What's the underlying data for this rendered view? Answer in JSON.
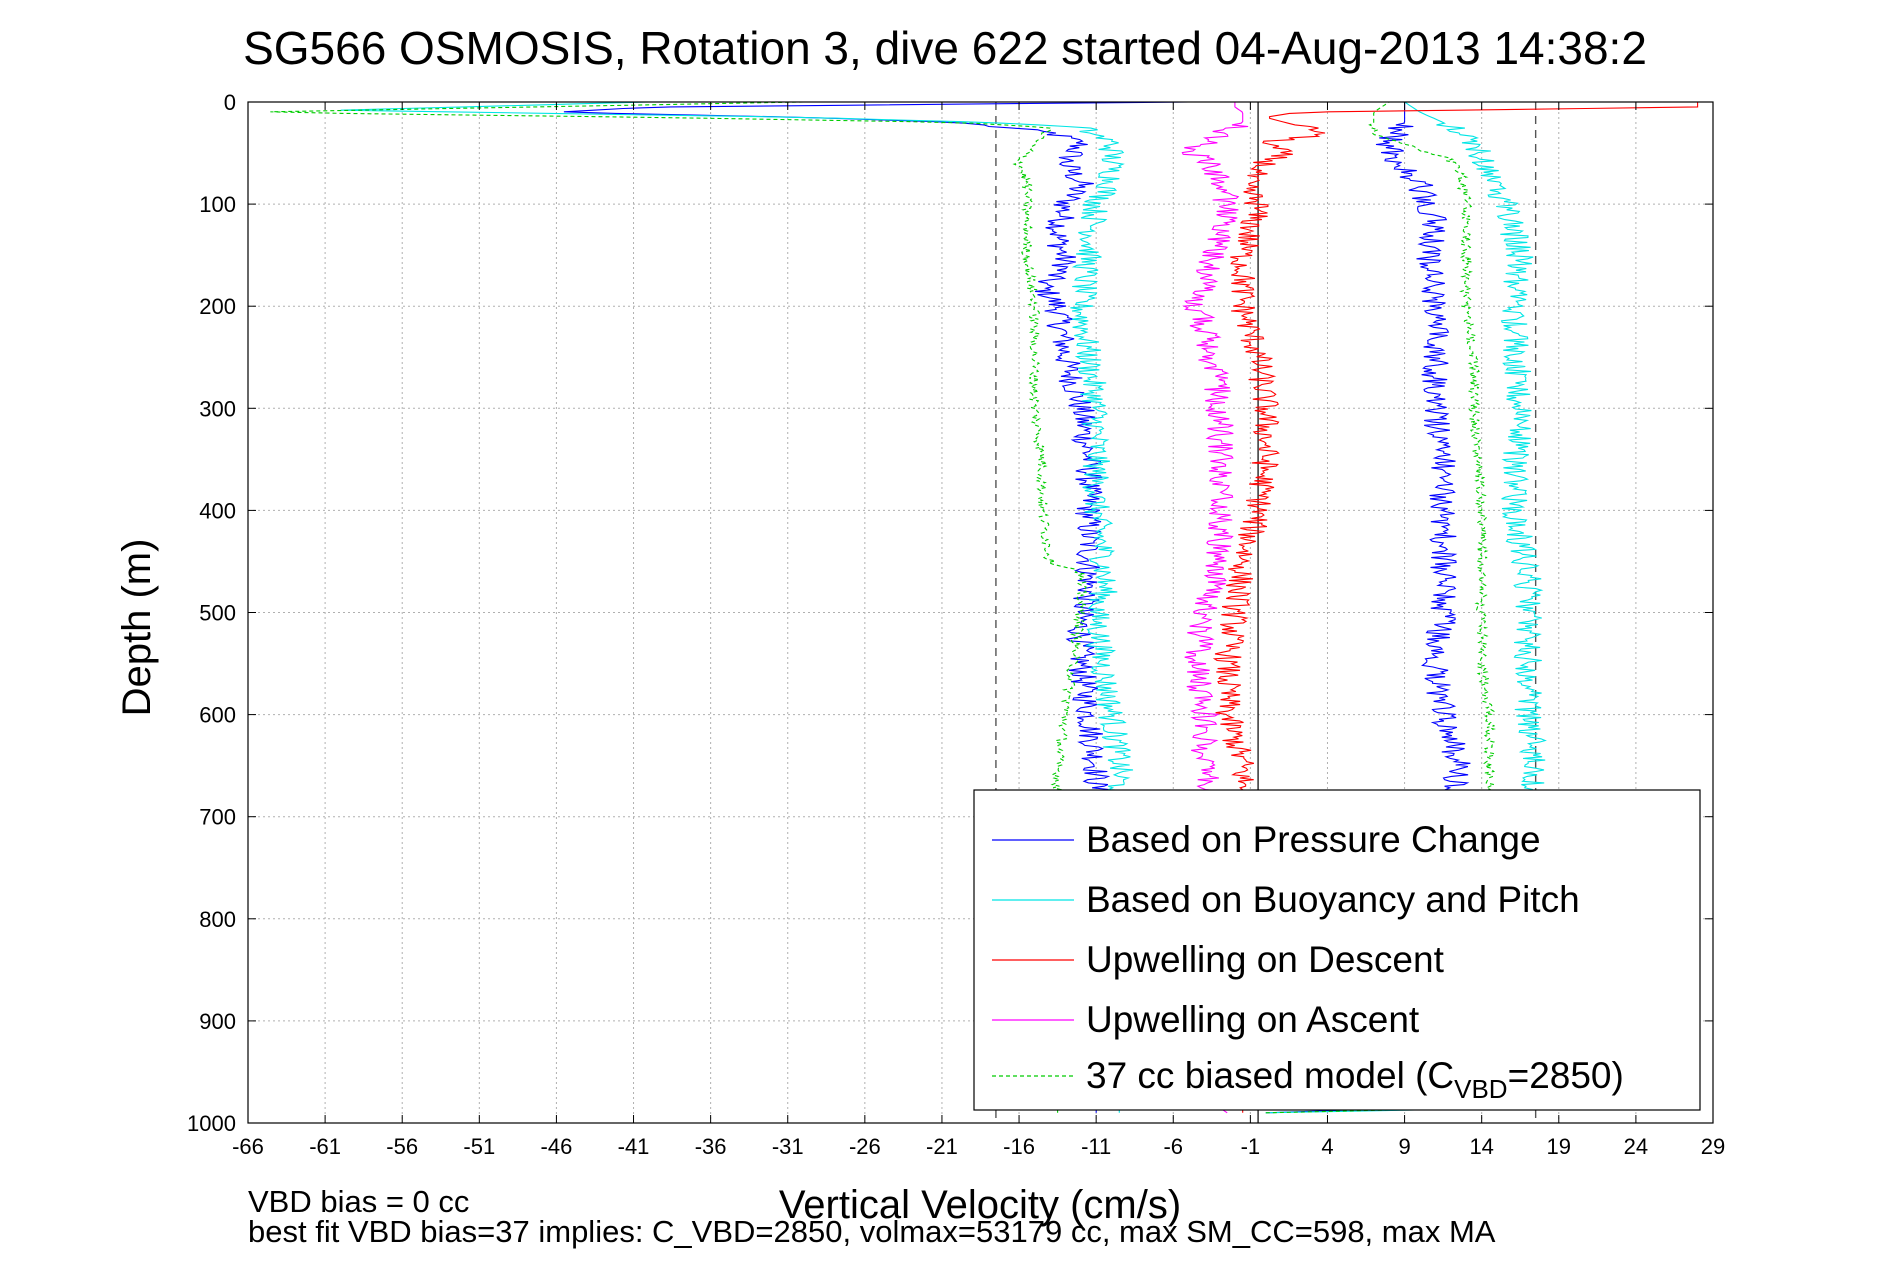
{
  "chart_data": {
    "type": "line",
    "title": "SG566 OSMOSIS, Rotation 3, dive 622 started 04-Aug-2013 14:38:2",
    "xlabel": "Vertical Velocity (cm/s)",
    "ylabel": "Depth (m)",
    "xlim": [
      -66,
      29
    ],
    "ylim": [
      1000,
      0
    ],
    "y_reversed": true,
    "grid": true,
    "x_ticks": [
      "-66",
      "-61",
      "-56",
      "-51",
      "-46",
      "-41",
      "-36",
      "-31",
      "-26",
      "-21",
      "-16",
      "-11",
      "-6",
      "-1",
      "4",
      "9",
      "14",
      "19",
      "24",
      "29"
    ],
    "y_ticks": [
      "0",
      "100",
      "200",
      "300",
      "400",
      "500",
      "600",
      "700",
      "800",
      "900",
      "1000"
    ],
    "legend_placement": "bottom-right",
    "reference_lines": {
      "solid_x": -0.5,
      "dashed_x": [
        -17.5,
        17.5
      ]
    },
    "legend": {
      "pressure": "Based on Pressure Change",
      "buoyancy": "Based on Buoyancy and Pitch",
      "up_descent": "Upwelling on Descent",
      "up_ascent": "Upwelling on Ascent",
      "model_prefix": "37 cc biased model (C",
      "model_sub": "VBD",
      "model_suffix": "=2850)"
    },
    "series": [
      {
        "key": "pressure",
        "name": "Based on Pressure Change",
        "color": "#0000ff",
        "descent_depths": [
          0,
          5,
          10,
          15,
          20,
          30,
          40,
          60,
          80,
          100,
          130,
          160,
          180,
          200,
          250,
          300,
          350,
          400,
          450,
          480,
          500,
          550,
          600,
          650,
          700,
          800,
          900,
          985,
          990
        ],
        "descent_vel": [
          -5,
          -40,
          -46,
          -30,
          -20,
          -14,
          -12,
          -13,
          -12,
          -13,
          -13.5,
          -13,
          -14.5,
          -13.5,
          -13,
          -12,
          -11.5,
          -11.5,
          -11.5,
          -11.5,
          -12,
          -12,
          -11.5,
          -11,
          -11,
          -11,
          -11,
          -11,
          -11
        ],
        "ascent_depths": [
          990,
          985,
          900,
          800,
          700,
          650,
          600,
          550,
          500,
          450,
          400,
          350,
          300,
          250,
          200,
          150,
          120,
          100,
          80,
          60,
          40,
          20,
          10,
          5,
          0
        ],
        "ascent_vel": [
          0,
          10,
          11,
          12,
          12,
          12.5,
          11.5,
          11,
          11.5,
          11.5,
          11.5,
          11.5,
          11,
          11,
          11,
          10.5,
          11,
          10.5,
          10,
          8.5,
          8,
          9,
          9,
          9,
          9
        ]
      },
      {
        "key": "buoyancy",
        "name": "Based on Buoyancy and Pitch",
        "color": "#00e5e5",
        "descent_depths": [
          0,
          8,
          15,
          20,
          25,
          40,
          60,
          80,
          100,
          150,
          200,
          250,
          300,
          400,
          450,
          480,
          500,
          560,
          600,
          650,
          700,
          800,
          900,
          990
        ],
        "descent_vel": [
          -40,
          -60,
          -30,
          -18,
          -12,
          -10,
          -10,
          -10,
          -11,
          -11.5,
          -12,
          -11.5,
          -11,
          -11,
          -10.5,
          -10.5,
          -11,
          -10.5,
          -10,
          -9.5,
          -9.5,
          -9.5,
          -9.5,
          -9.5
        ],
        "ascent_depths": [
          990,
          985,
          900,
          800,
          700,
          650,
          600,
          550,
          460,
          400,
          300,
          200,
          150,
          100,
          60,
          40,
          20,
          10,
          0
        ],
        "ascent_vel": [
          0,
          17.5,
          17,
          17,
          17,
          17.5,
          17,
          17,
          17,
          16,
          16.5,
          16,
          16.5,
          15.5,
          14,
          13.5,
          11.5,
          10,
          9
        ]
      },
      {
        "key": "up_descent",
        "name": "Upwelling on Descent",
        "color": "#ff0000",
        "descent_depths": [
          0,
          5,
          10,
          15,
          25,
          30,
          40,
          50,
          60,
          80,
          100,
          150,
          200,
          250,
          300,
          350,
          400,
          450,
          500,
          550,
          600,
          650,
          700,
          800,
          900,
          990
        ],
        "descent_vel": [
          28,
          28,
          2,
          0,
          2.5,
          4,
          0,
          1,
          0,
          -1.5,
          -0.5,
          -1.5,
          -1.5,
          -0.5,
          0,
          0,
          -0.5,
          -1.5,
          -2,
          -2.5,
          -2.5,
          -1.5,
          -1.5,
          -1.5,
          -1.5,
          -1.5
        ],
        "ascent_depths": [],
        "ascent_vel": []
      },
      {
        "key": "up_ascent",
        "name": "Upwelling on Ascent",
        "color": "#ff00ff",
        "descent_depths": [],
        "descent_vel": [],
        "ascent_depths": [
          990,
          985,
          900,
          800,
          700,
          650,
          600,
          550,
          500,
          450,
          400,
          350,
          300,
          250,
          200,
          150,
          120,
          100,
          80,
          60,
          50,
          40,
          20,
          10,
          5,
          0
        ],
        "ascent_vel": [
          -2.5,
          -3,
          -3,
          -3,
          -3.5,
          -4,
          -4,
          -4.5,
          -4,
          -3,
          -3,
          -3,
          -3,
          -3.5,
          -4.5,
          -3.5,
          -2.5,
          -2.5,
          -3,
          -3.5,
          -5,
          -4,
          -1.5,
          -1.5,
          -2,
          -2
        ]
      },
      {
        "key": "model",
        "name": "37 cc biased model (CVBD=2850)",
        "color": "#00cc00",
        "dashed": true,
        "descent_depths": [
          0,
          10,
          15,
          20,
          25,
          40,
          60,
          80,
          100,
          150,
          200,
          250,
          300,
          350,
          400,
          450,
          460,
          500,
          550,
          600,
          650,
          700,
          800,
          900,
          990
        ],
        "descent_vel": [
          -30,
          -66,
          -40,
          -20,
          -14,
          -15,
          -16,
          -15.5,
          -15.5,
          -15.5,
          -15,
          -15,
          -15,
          -14.5,
          -14.5,
          -14,
          -12,
          -12,
          -12.5,
          -13,
          -13.5,
          -13.5,
          -13.5,
          -13.5,
          -13.5
        ],
        "ascent_depths": [
          990,
          985,
          900,
          800,
          700,
          650,
          600,
          550,
          500,
          450,
          400,
          300,
          250,
          200,
          150,
          100,
          60,
          30,
          20,
          10,
          0
        ],
        "ascent_vel": [
          0,
          14.5,
          14.5,
          14.5,
          14.5,
          14.5,
          14.5,
          14,
          14,
          14,
          14,
          13.5,
          13.5,
          13,
          13,
          13,
          12.5,
          7,
          7,
          7,
          8
        ]
      }
    ]
  },
  "footer": {
    "line1": "VBD bias = 0 cc",
    "line2": "best fit VBD bias=37 implies: C_VBD=2850, volmax=53179 cc, max SM_CC=598, max MA"
  }
}
